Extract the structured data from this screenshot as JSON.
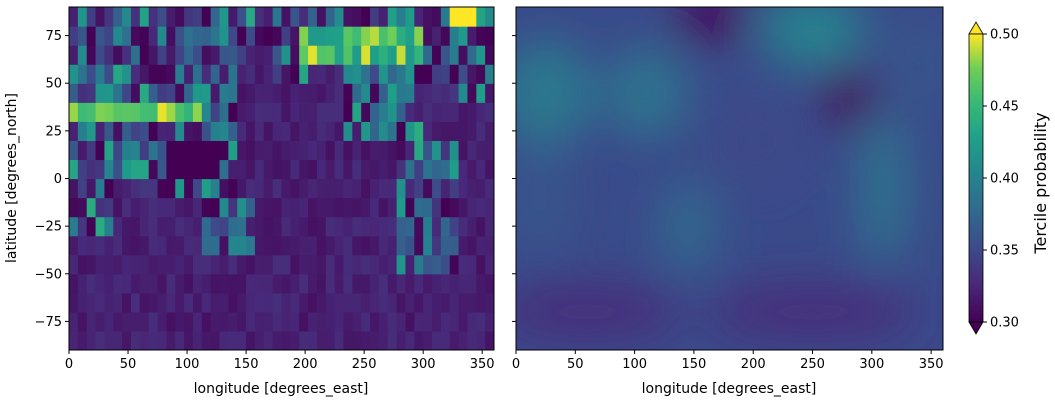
{
  "chart_data": [
    {
      "type": "heatmap",
      "panel": "left",
      "title": "",
      "xlabel": "longitude [degrees_east]",
      "ylabel": "latitude [degrees_north]",
      "xlim": [
        0,
        360
      ],
      "ylim": [
        -90,
        90
      ],
      "xticks": [
        0,
        50,
        100,
        150,
        200,
        250,
        300,
        350
      ],
      "yticks": [
        75,
        50,
        25,
        0,
        -25,
        -50,
        -75
      ],
      "xtick_labels": [
        "0",
        "50",
        "100",
        "150",
        "200",
        "250",
        "300",
        "350"
      ],
      "ytick_labels": [
        "75",
        "50",
        "25",
        "0",
        "−25",
        "−50",
        "−75"
      ],
      "value_range": [
        0.3,
        0.5
      ],
      "description_values": {
        "ocean_fill": 0.32,
        "band_lat_40_lon_0_110": 0.46,
        "band_lat_75_lon_195_300": 0.49,
        "band_lat_85_lon_330_345": 0.5
      }
    },
    {
      "type": "heatmap",
      "panel": "right",
      "title": "",
      "xlabel": "longitude [degrees_east]",
      "ylabel": "",
      "xlim": [
        0,
        360
      ],
      "ylim": [
        -90,
        90
      ],
      "xticks": [
        0,
        50,
        100,
        150,
        200,
        250,
        300,
        350
      ],
      "xtick_labels": [
        "0",
        "50",
        "100",
        "150",
        "200",
        "250",
        "300",
        "350"
      ],
      "value_range": [
        0.3,
        0.5
      ],
      "smoothed": true
    }
  ],
  "colorbar": {
    "label": "Tercile probability",
    "ticks": [
      0.5,
      0.45,
      0.4,
      0.35,
      0.3
    ],
    "tick_labels": [
      "0.50",
      "0.45",
      "0.40",
      "0.35",
      "0.30"
    ],
    "range": [
      0.3,
      0.5
    ],
    "extend": "both",
    "colormap": "viridis"
  }
}
